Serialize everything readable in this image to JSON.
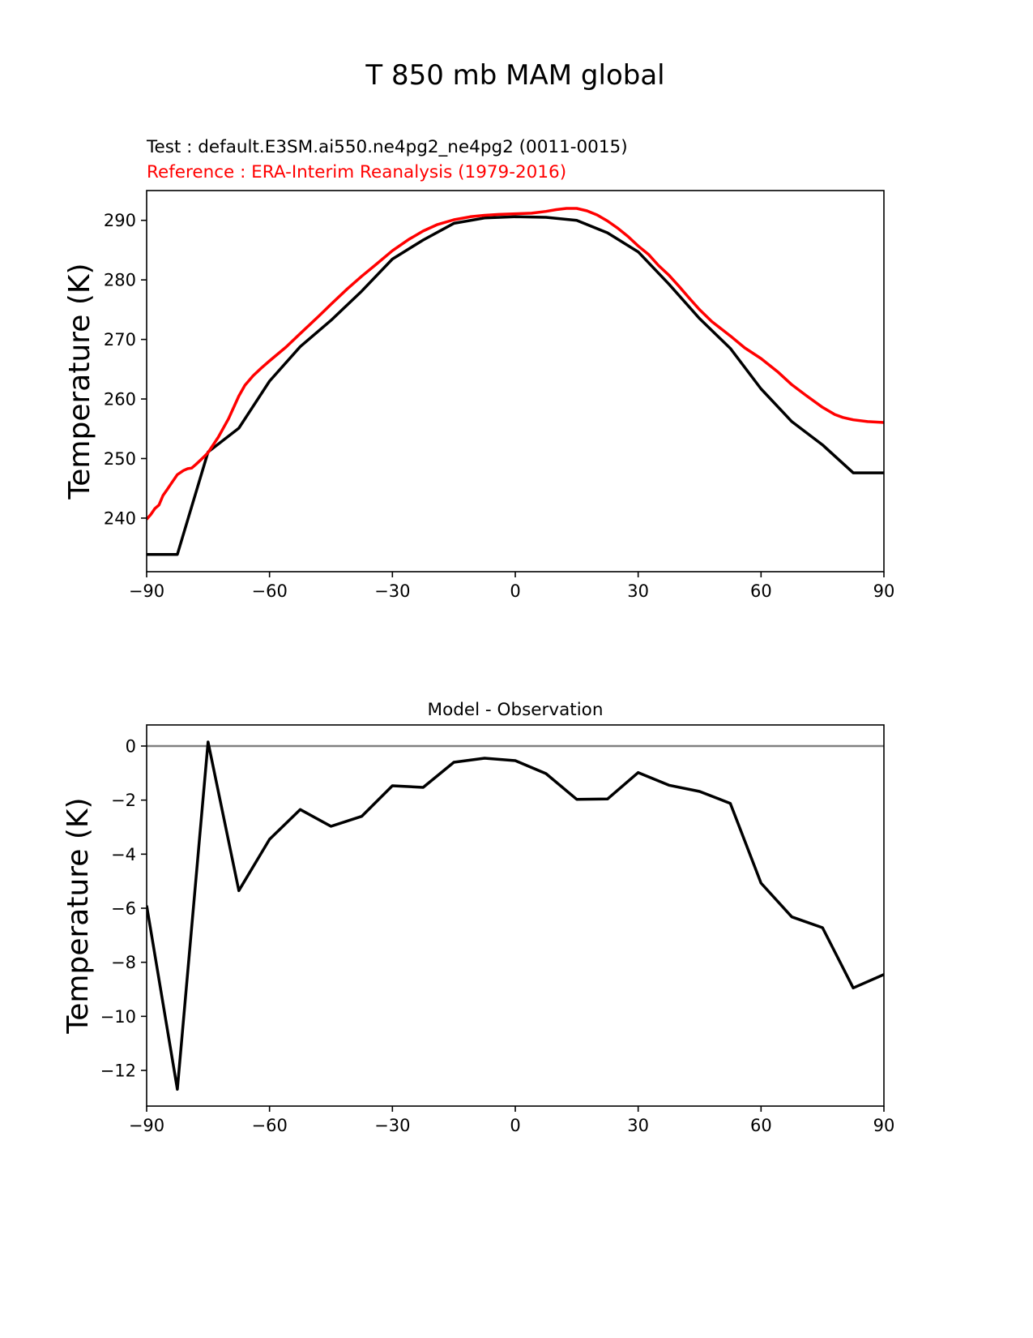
{
  "chart_data": [
    {
      "type": "line",
      "title": "T 850 mb MAM global",
      "test_label": "Test : default.E3SM.ai550.ne4pg2_ne4pg2 (0011-0015)",
      "reference_label": "Reference : ERA-Interim Reanalysis (1979-2016)",
      "xlabel": "",
      "ylabel": "Temperature (K)",
      "xlim": [
        -90,
        90
      ],
      "ylim": [
        231,
        295
      ],
      "xticks": [
        -90,
        -60,
        -30,
        0,
        30,
        60,
        90
      ],
      "xtick_labels": [
        "−90",
        "−60",
        "−30",
        "0",
        "30",
        "60",
        "90"
      ],
      "yticks": [
        240,
        250,
        260,
        270,
        280,
        290
      ],
      "ytick_labels": [
        "240",
        "250",
        "260",
        "270",
        "280",
        "290"
      ],
      "series": [
        {
          "name": "Test",
          "color": "#000000",
          "x": [
            -90,
            -82.5,
            -75,
            -67.5,
            -60,
            -52.5,
            -45,
            -37.5,
            -30,
            -22.5,
            -15,
            -7.5,
            0,
            7.5,
            15,
            22.5,
            30,
            37.5,
            45,
            52.5,
            60,
            67.5,
            75,
            82.5,
            90
          ],
          "y": [
            233.9,
            233.9,
            251.1,
            255.1,
            263.0,
            268.8,
            273.2,
            278.1,
            283.5,
            286.7,
            289.5,
            290.4,
            290.6,
            290.5,
            290.0,
            287.9,
            284.7,
            279.3,
            273.5,
            268.5,
            261.7,
            256.2,
            252.3,
            247.6,
            247.6
          ]
        },
        {
          "name": "Reference",
          "color": "#ff0000",
          "x": [
            -90,
            -89,
            -88,
            -87,
            -86,
            -85,
            -84,
            -82.5,
            -81,
            -80,
            -79,
            -78,
            -76,
            -75,
            -72.5,
            -70,
            -67.5,
            -66,
            -64,
            -62,
            -60,
            -56,
            -52.5,
            -48,
            -45,
            -41,
            -37.5,
            -34,
            -30,
            -26,
            -22.5,
            -19,
            -15,
            -11,
            -7.5,
            -4,
            0,
            4,
            7.5,
            10,
            12.5,
            15,
            17.5,
            20,
            22.5,
            25,
            27.5,
            30,
            32.5,
            35,
            37.5,
            40,
            42.5,
            45,
            48,
            52.5,
            56,
            60,
            64,
            67.5,
            71,
            75,
            78,
            80,
            82.5,
            86,
            90
          ],
          "y": [
            239.8,
            240.6,
            241.6,
            242.2,
            243.8,
            244.8,
            245.8,
            247.3,
            248.0,
            248.3,
            248.4,
            249.0,
            250.3,
            251.0,
            253.6,
            256.7,
            260.5,
            262.3,
            263.9,
            265.2,
            266.4,
            268.7,
            271.0,
            273.9,
            275.9,
            278.5,
            280.6,
            282.6,
            284.9,
            286.8,
            288.2,
            289.3,
            290.1,
            290.6,
            290.85,
            291.0,
            291.1,
            291.2,
            291.5,
            291.8,
            292.0,
            292.0,
            291.6,
            290.9,
            289.9,
            288.7,
            287.3,
            285.7,
            284.3,
            282.4,
            280.8,
            278.9,
            276.9,
            275.0,
            273.0,
            270.6,
            268.6,
            266.8,
            264.6,
            262.4,
            260.6,
            258.6,
            257.4,
            256.9,
            256.5,
            256.2,
            256.05
          ]
        }
      ]
    },
    {
      "type": "line",
      "title": "Model - Observation",
      "xlabel": "",
      "ylabel": "Temperature (K)",
      "xlim": [
        -90,
        90
      ],
      "ylim": [
        -13.32,
        0.78
      ],
      "zero_line_color": "#808080",
      "xticks": [
        -90,
        -60,
        -30,
        0,
        30,
        60,
        90
      ],
      "xtick_labels": [
        "−90",
        "−60",
        "−30",
        "0",
        "30",
        "60",
        "90"
      ],
      "yticks": [
        0,
        -2,
        -4,
        -6,
        -8,
        -10,
        -12
      ],
      "ytick_labels": [
        "0",
        "−2",
        "−4",
        "−6",
        "−8",
        "−10",
        "−12"
      ],
      "series": [
        {
          "name": "Model - Observation",
          "color": "#000000",
          "x": [
            -90,
            -82.5,
            -75,
            -67.5,
            -60,
            -52.5,
            -45,
            -37.5,
            -30,
            -22.5,
            -15,
            -7.5,
            0,
            7.5,
            15,
            22.5,
            30,
            37.5,
            45,
            52.5,
            60,
            67.5,
            75,
            82.5,
            90
          ],
          "y": [
            -5.9,
            -12.7,
            0.15,
            -5.35,
            -3.45,
            -2.35,
            -2.97,
            -2.6,
            -1.47,
            -1.53,
            -0.6,
            -0.45,
            -0.54,
            -1.02,
            -1.97,
            -1.96,
            -0.98,
            -1.45,
            -1.68,
            -2.12,
            -5.07,
            -6.32,
            -6.72,
            -8.95,
            -8.45
          ]
        }
      ]
    }
  ]
}
